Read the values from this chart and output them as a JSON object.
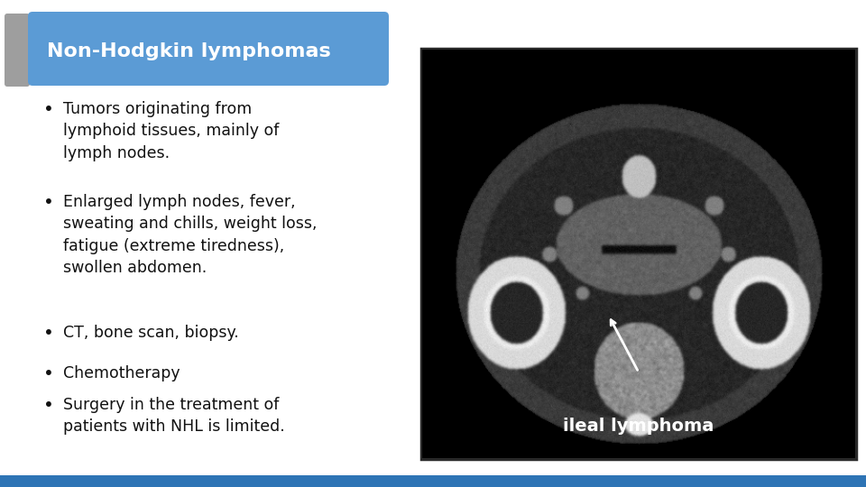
{
  "title": "Non-Hodgkin lymphomas",
  "title_bg_color": "#5b9bd5",
  "title_text_color": "#ffffff",
  "sidebar_color": "#9e9e9e",
  "background_color": "#ffffff",
  "bottom_bar_color": "#2e74b5",
  "bullet_points": [
    "Tumors originating from\nlymphoid tissues, mainly of\nlymph nodes.",
    "Enlarged lymph nodes, fever,\nsweating and chills, weight loss,\nfatigue (extreme tiredness),\nswollen abdomen.",
    "CT, bone scan, biopsy.",
    "Chemotherapy",
    "Surgery in the treatment of\npatients with NHL is limited."
  ],
  "bullet_color": "#111111",
  "text_color": "#111111",
  "image_label": "ileal lymphoma",
  "fig_width": 9.6,
  "fig_height": 5.4,
  "dpi": 100
}
